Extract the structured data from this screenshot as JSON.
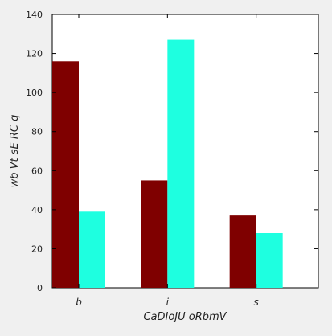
{
  "chart_data": {
    "type": "bar",
    "title": "",
    "xlabel": "CaDIoJU  oRbmV",
    "ylabel": "wb Vt sE RC q",
    "categories": [
      "b",
      "i",
      "s"
    ],
    "series": [
      {
        "values": [
          116,
          55,
          37
        ],
        "color": "#7f0000"
      },
      {
        "values": [
          39,
          127,
          28
        ],
        "color": "#1effe0"
      }
    ],
    "ylim": [
      0,
      140
    ],
    "yticks": [
      0,
      20,
      40,
      60,
      80,
      100,
      120,
      140
    ],
    "grid": false,
    "legend": "none",
    "background": "#ffffff"
  }
}
